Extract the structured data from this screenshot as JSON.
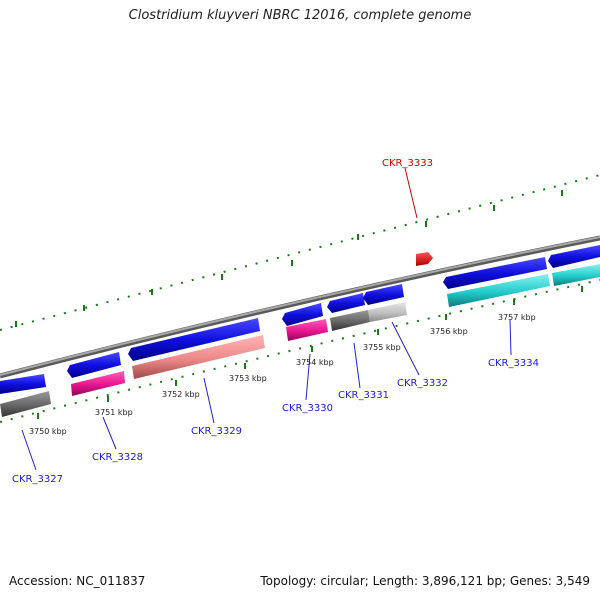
{
  "title": "Clostridium kluyveri NBRC 12016, complete genome",
  "footer": {
    "accession": "Accession: NC_011837",
    "summary": "Topology: circular; Length: 3,896,121 bp; Genes: 3,549"
  },
  "kbp_labels": [
    "3750 kbp",
    "3751 kbp",
    "3752 kbp",
    "3753 kbp",
    "3754 kbp",
    "3755 kbp",
    "3756 kbp",
    "3757 kbp"
  ],
  "genes": [
    {
      "name": "CKR_3327",
      "color": "#0000cc"
    },
    {
      "name": "CKR_3328",
      "color": "#0000cc"
    },
    {
      "name": "CKR_3329",
      "color": "#0000cc"
    },
    {
      "name": "CKR_3330",
      "color": "#0000cc"
    },
    {
      "name": "CKR_3331",
      "color": "#0000cc"
    },
    {
      "name": "CKR_3332",
      "color": "#0000cc"
    },
    {
      "name": "CKR_3334",
      "color": "#0000cc"
    },
    {
      "name": "CKR_3333",
      "color": "#cc0000"
    }
  ],
  "colors": {
    "backbone": "#808080",
    "tick": "#1a7a1a",
    "cds": "#1010e0",
    "feature_pink": "#e8158f",
    "feature_salmon": "#ee8888",
    "feature_gray": "#666666",
    "feature_lightgray": "#c0c0c0",
    "feature_cyan": "#22cccc",
    "highlight": "#dd0000"
  }
}
